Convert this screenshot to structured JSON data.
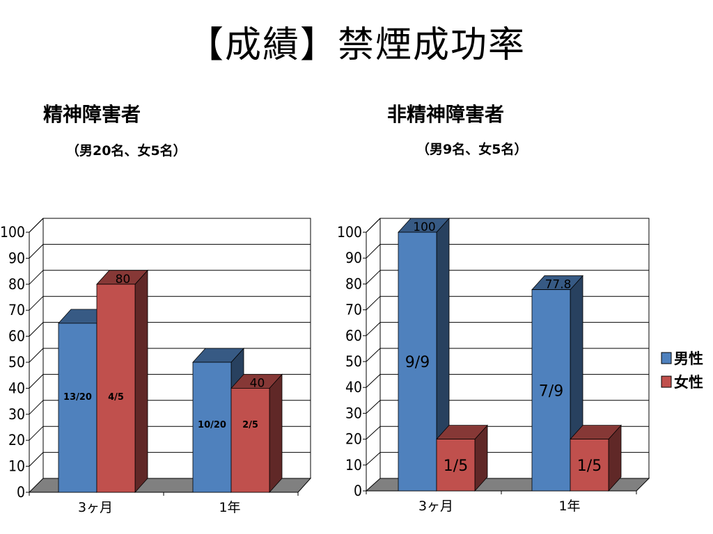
{
  "title": "【成績】禁煙成功率",
  "left": {
    "subtitle": "精神障害者",
    "note": "（男20名、女5名）"
  },
  "right": {
    "subtitle": "非精神障害者",
    "note": "（男9名、女5名）"
  },
  "legend": [
    {
      "name": "男性",
      "color": "#4f81bd"
    },
    {
      "name": "女性",
      "color": "#c0504d"
    }
  ],
  "chart_data": [
    {
      "type": "bar",
      "categories": [
        "3ヶ月",
        "1年"
      ],
      "ylim": [
        0,
        100
      ],
      "yticks": [
        0,
        10,
        20,
        30,
        40,
        50,
        60,
        70,
        80,
        90,
        100
      ],
      "grid": true,
      "series": [
        {
          "name": "男性",
          "values": [
            65,
            50
          ],
          "bar_labels": [
            "13/20",
            "10/20"
          ],
          "top_labels": [
            "",
            ""
          ]
        },
        {
          "name": "女性",
          "values": [
            80,
            40
          ],
          "bar_labels": [
            "4/5",
            "2/5"
          ],
          "top_labels": [
            "80",
            "40"
          ]
        }
      ]
    },
    {
      "type": "bar",
      "categories": [
        "3ヶ月",
        "1年"
      ],
      "ylim": [
        0,
        100
      ],
      "yticks": [
        0,
        10,
        20,
        30,
        40,
        50,
        60,
        70,
        80,
        90,
        100
      ],
      "grid": true,
      "legend": "right",
      "series": [
        {
          "name": "男性",
          "values": [
            100,
            77.8
          ],
          "bar_labels": [
            "9/9",
            "7/9"
          ],
          "top_labels": [
            "100",
            "77.8"
          ]
        },
        {
          "name": "女性",
          "values": [
            20,
            20
          ],
          "bar_labels": [
            "1/5",
            "1/5"
          ],
          "top_labels": [
            "",
            ""
          ]
        }
      ]
    }
  ]
}
